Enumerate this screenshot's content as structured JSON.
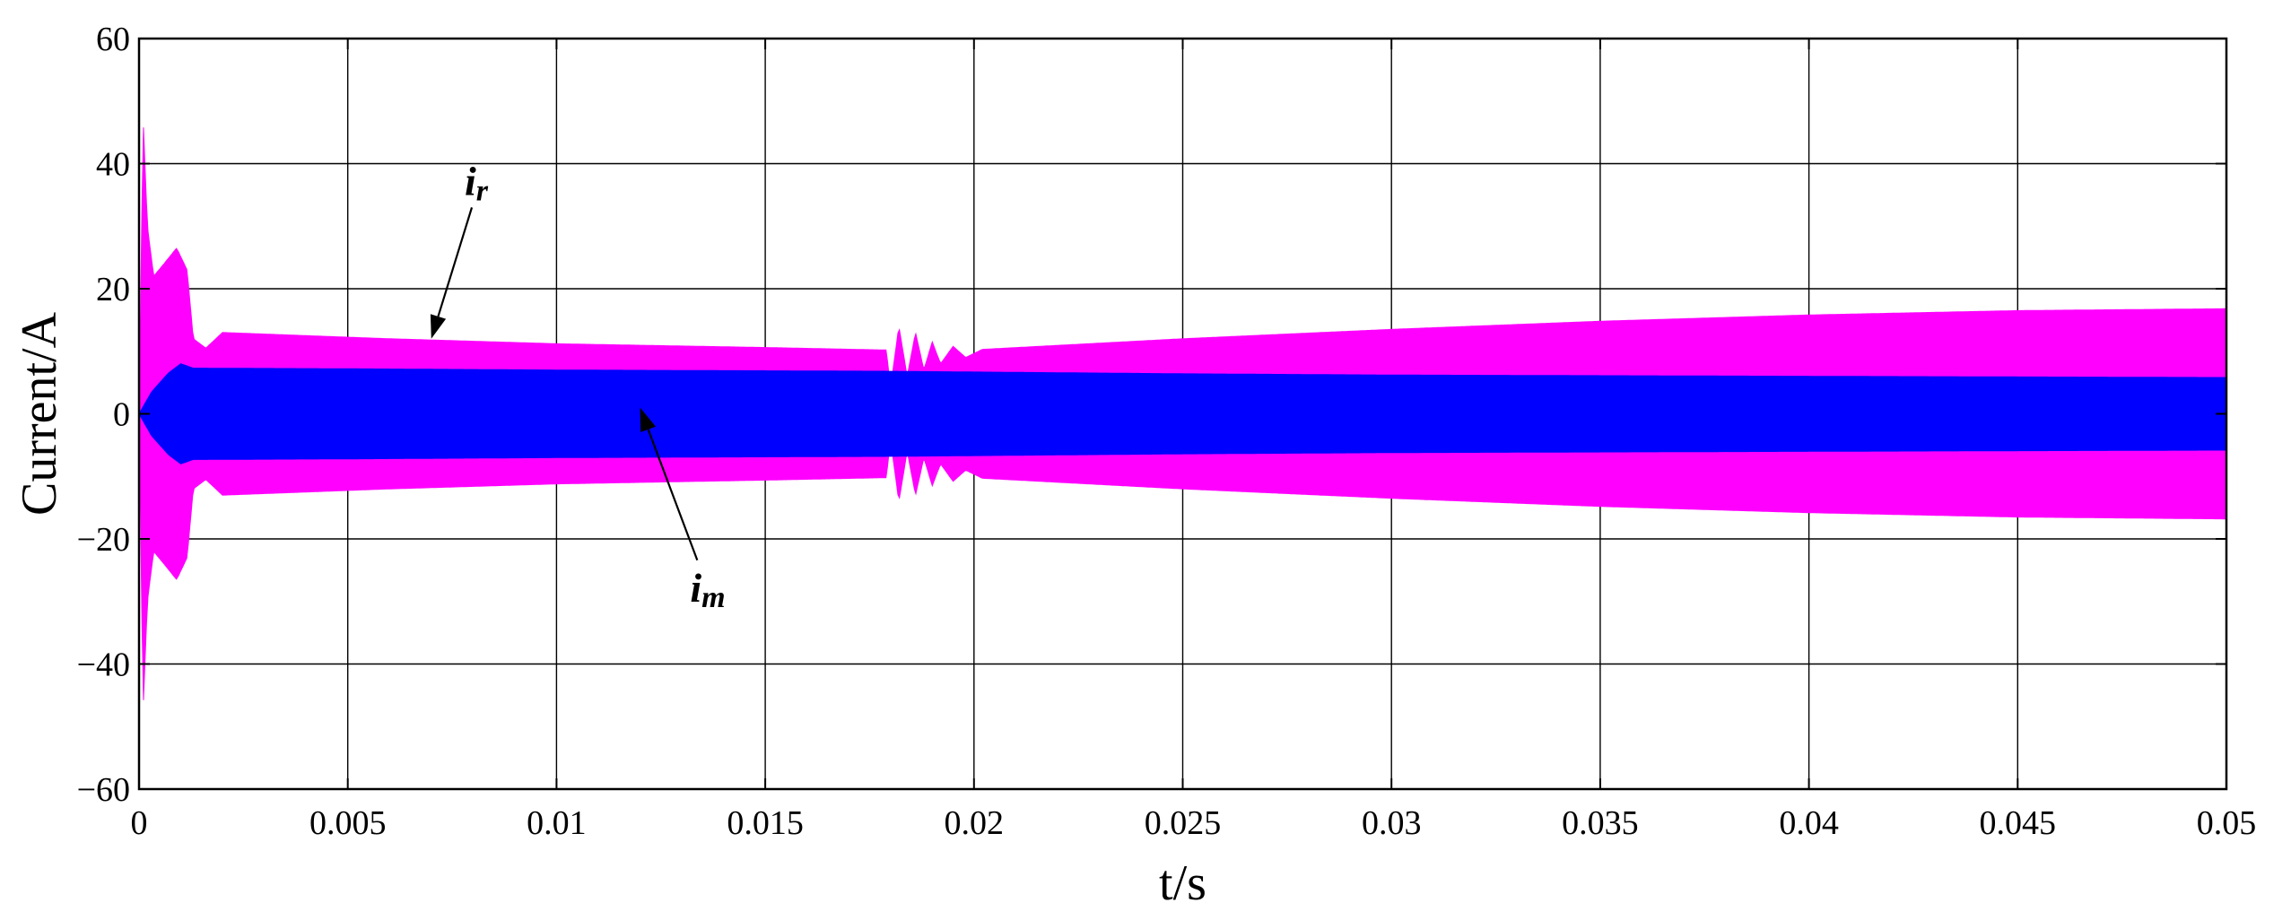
{
  "chart_data": {
    "type": "line",
    "title": "",
    "xlabel": "t/s",
    "ylabel": "Current/A",
    "xlim": [
      0,
      0.05
    ],
    "ylim": [
      -60,
      60
    ],
    "grid": true,
    "x_ticks": [
      {
        "value": 0,
        "label": "0"
      },
      {
        "value": 0.005,
        "label": "0.005"
      },
      {
        "value": 0.01,
        "label": "0.01"
      },
      {
        "value": 0.015,
        "label": "0.015"
      },
      {
        "value": 0.02,
        "label": "0.02"
      },
      {
        "value": 0.025,
        "label": "0.025"
      },
      {
        "value": 0.03,
        "label": "0.03"
      },
      {
        "value": 0.035,
        "label": "0.035"
      },
      {
        "value": 0.04,
        "label": "0.04"
      },
      {
        "value": 0.045,
        "label": "0.045"
      },
      {
        "value": 0.05,
        "label": "0.05"
      }
    ],
    "y_ticks": [
      {
        "value": 60,
        "label": "60"
      },
      {
        "value": 40,
        "label": "40"
      },
      {
        "value": 20,
        "label": "20"
      },
      {
        "value": 0,
        "label": "0"
      },
      {
        "value": -20,
        "label": "−20"
      },
      {
        "value": -40,
        "label": "−40"
      },
      {
        "value": -60,
        "label": "−60"
      }
    ],
    "series": [
      {
        "key": "ir",
        "color": "#ff00ff",
        "description_of_marks": "high-frequency oscillation, envelope shown",
        "envelope": [
          {
            "x": 0.0,
            "a": 0
          },
          {
            "x": 0.0001,
            "a": 47
          },
          {
            "x": 0.0002,
            "a": 30
          },
          {
            "x": 0.00035,
            "a": 22
          },
          {
            "x": 0.0006,
            "a": 24
          },
          {
            "x": 0.0009,
            "a": 26.5
          },
          {
            "x": 0.00115,
            "a": 23
          },
          {
            "x": 0.0013,
            "a": 12
          },
          {
            "x": 0.0016,
            "a": 10.5
          },
          {
            "x": 0.002,
            "a": 13
          },
          {
            "x": 0.004,
            "a": 12.5
          },
          {
            "x": 0.006,
            "a": 12
          },
          {
            "x": 0.01,
            "a": 11.2
          },
          {
            "x": 0.015,
            "a": 10.6
          },
          {
            "x": 0.0179,
            "a": 10.2
          },
          {
            "x": 0.018,
            "a": 4
          },
          {
            "x": 0.0182,
            "a": 14
          },
          {
            "x": 0.0184,
            "a": 6
          },
          {
            "x": 0.0186,
            "a": 13
          },
          {
            "x": 0.0188,
            "a": 7
          },
          {
            "x": 0.019,
            "a": 11.5
          },
          {
            "x": 0.0192,
            "a": 8
          },
          {
            "x": 0.0195,
            "a": 10.8
          },
          {
            "x": 0.0198,
            "a": 9
          },
          {
            "x": 0.0202,
            "a": 10.3
          },
          {
            "x": 0.025,
            "a": 12
          },
          {
            "x": 0.03,
            "a": 13.5
          },
          {
            "x": 0.035,
            "a": 14.8
          },
          {
            "x": 0.04,
            "a": 15.8
          },
          {
            "x": 0.045,
            "a": 16.5
          },
          {
            "x": 0.05,
            "a": 16.8
          }
        ]
      },
      {
        "key": "im",
        "color": "#0000ff",
        "description_of_marks": "high-frequency oscillation, envelope shown",
        "envelope": [
          {
            "x": 0.0,
            "a": 0
          },
          {
            "x": 0.0003,
            "a": 3.5
          },
          {
            "x": 0.0007,
            "a": 6.5
          },
          {
            "x": 0.001,
            "a": 8
          },
          {
            "x": 0.0013,
            "a": 7.3
          },
          {
            "x": 0.005,
            "a": 7.2
          },
          {
            "x": 0.01,
            "a": 7
          },
          {
            "x": 0.018,
            "a": 6.8
          },
          {
            "x": 0.025,
            "a": 6.4
          },
          {
            "x": 0.03,
            "a": 6.2
          },
          {
            "x": 0.04,
            "a": 6
          },
          {
            "x": 0.05,
            "a": 5.8
          }
        ]
      }
    ],
    "annotations": [
      {
        "key": "ir",
        "main": "i",
        "sub": "r",
        "text_at": {
          "x": 0.0078,
          "y": 35
        },
        "arrow_to": {
          "x": 0.007,
          "y": 12
        }
      },
      {
        "key": "im",
        "main": "i",
        "sub": "m",
        "text_at": {
          "x": 0.0132,
          "y": -30
        },
        "arrow_to": {
          "x": 0.012,
          "y": 1
        }
      }
    ]
  }
}
